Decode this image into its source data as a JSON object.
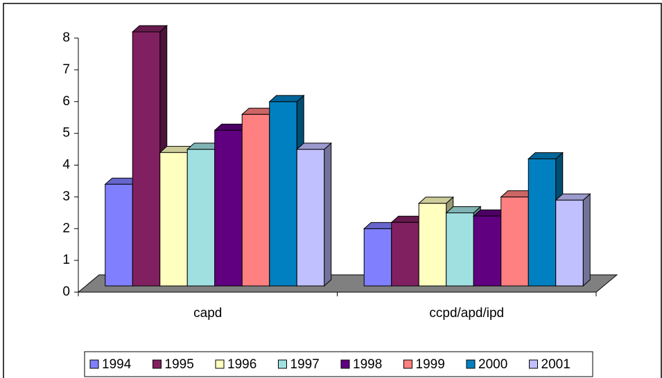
{
  "chart_data": {
    "type": "bar",
    "categories": [
      "capd",
      "ccpd/apd/ipd"
    ],
    "series": [
      {
        "name": "1994",
        "color": "#8080ff",
        "values": [
          3.2,
          1.8
        ]
      },
      {
        "name": "1995",
        "color": "#802060",
        "values": [
          8,
          2.0
        ]
      },
      {
        "name": "1996",
        "color": "#ffffc0",
        "values": [
          4.2,
          2.6
        ]
      },
      {
        "name": "1997",
        "color": "#a0e0e0",
        "values": [
          4.3,
          2.3
        ]
      },
      {
        "name": "1998",
        "color": "#600080",
        "values": [
          4.9,
          2.2
        ]
      },
      {
        "name": "1999",
        "color": "#ff8080",
        "values": [
          5.4,
          2.8
        ]
      },
      {
        "name": "2000",
        "color": "#0080c0",
        "values": [
          5.8,
          4.0
        ]
      },
      {
        "name": "2001",
        "color": "#c0c0ff",
        "values": [
          4.3,
          2.7
        ]
      }
    ],
    "ylim": [
      0,
      8
    ],
    "yticks": [
      0,
      1,
      2,
      3,
      4,
      5,
      6,
      7,
      8
    ],
    "legend": "bottom"
  }
}
